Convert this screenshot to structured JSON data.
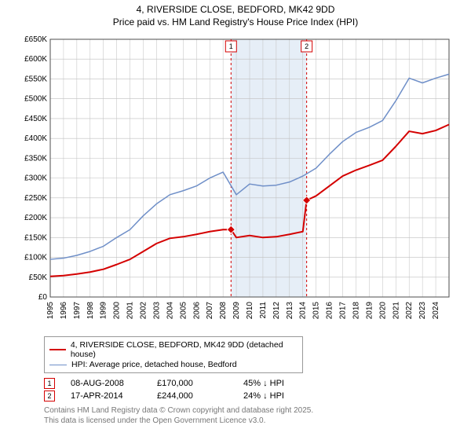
{
  "title": {
    "line1": "4, RIVERSIDE CLOSE, BEDFORD, MK42 9DD",
    "line2": "Price paid vs. HM Land Registry's House Price Index (HPI)"
  },
  "chart": {
    "type": "line",
    "plot_background": "#ffffff",
    "grid_color": "#bfbfbf",
    "axis_color": "#4d4d4d",
    "shaded_band": {
      "x_start": 2008.6,
      "x_end": 2014.29,
      "fill": "#e6eef7"
    },
    "xlim": [
      1995,
      2025
    ],
    "ylim": [
      0,
      650000
    ],
    "xticks": [
      1995,
      1996,
      1997,
      1998,
      1999,
      2000,
      2001,
      2002,
      2003,
      2004,
      2005,
      2006,
      2007,
      2008,
      2009,
      2010,
      2011,
      2012,
      2013,
      2014,
      2015,
      2016,
      2017,
      2018,
      2019,
      2020,
      2021,
      2022,
      2023,
      2024
    ],
    "yticks": [
      0,
      50000,
      100000,
      150000,
      200000,
      250000,
      300000,
      350000,
      400000,
      450000,
      500000,
      550000,
      600000,
      650000
    ],
    "ytick_labels": [
      "£0",
      "£50K",
      "£100K",
      "£150K",
      "£200K",
      "£250K",
      "£300K",
      "£350K",
      "£400K",
      "£450K",
      "£500K",
      "£550K",
      "£600K",
      "£650K"
    ],
    "series": [
      {
        "name": "4, RIVERSIDE CLOSE, BEDFORD, MK42 9DD (detached house)",
        "color": "#d40000",
        "line_width": 2,
        "data": [
          [
            1995,
            52000
          ],
          [
            1996,
            54000
          ],
          [
            1997,
            58000
          ],
          [
            1998,
            63000
          ],
          [
            1999,
            70000
          ],
          [
            2000,
            82000
          ],
          [
            2001,
            95000
          ],
          [
            2002,
            115000
          ],
          [
            2003,
            135000
          ],
          [
            2004,
            148000
          ],
          [
            2005,
            152000
          ],
          [
            2006,
            158000
          ],
          [
            2007,
            165000
          ],
          [
            2008,
            170000
          ],
          [
            2008.6,
            170000
          ],
          [
            2009,
            150000
          ],
          [
            2010,
            155000
          ],
          [
            2011,
            150000
          ],
          [
            2012,
            152000
          ],
          [
            2013,
            158000
          ],
          [
            2014,
            165000
          ],
          [
            2014.29,
            244000
          ],
          [
            2015,
            255000
          ],
          [
            2016,
            280000
          ],
          [
            2017,
            305000
          ],
          [
            2018,
            320000
          ],
          [
            2019,
            332000
          ],
          [
            2020,
            345000
          ],
          [
            2021,
            380000
          ],
          [
            2022,
            418000
          ],
          [
            2023,
            412000
          ],
          [
            2024,
            420000
          ],
          [
            2025,
            435000
          ]
        ],
        "sale_markers": [
          {
            "x": 2008.6,
            "y": 170000,
            "label": "1",
            "box_color": "#d40000"
          },
          {
            "x": 2014.29,
            "y": 244000,
            "label": "2",
            "box_color": "#d40000"
          }
        ]
      },
      {
        "name": "HPI: Average price, detached house, Bedford",
        "color": "#6f8fc8",
        "line_width": 1.5,
        "data": [
          [
            1995,
            95000
          ],
          [
            1996,
            98000
          ],
          [
            1997,
            105000
          ],
          [
            1998,
            115000
          ],
          [
            1999,
            128000
          ],
          [
            2000,
            150000
          ],
          [
            2001,
            170000
          ],
          [
            2002,
            205000
          ],
          [
            2003,
            235000
          ],
          [
            2004,
            258000
          ],
          [
            2005,
            268000
          ],
          [
            2006,
            280000
          ],
          [
            2007,
            300000
          ],
          [
            2008,
            315000
          ],
          [
            2009,
            258000
          ],
          [
            2010,
            285000
          ],
          [
            2011,
            280000
          ],
          [
            2012,
            282000
          ],
          [
            2013,
            290000
          ],
          [
            2014,
            305000
          ],
          [
            2015,
            325000
          ],
          [
            2016,
            360000
          ],
          [
            2017,
            392000
          ],
          [
            2018,
            415000
          ],
          [
            2019,
            428000
          ],
          [
            2020,
            445000
          ],
          [
            2021,
            495000
          ],
          [
            2022,
            552000
          ],
          [
            2023,
            540000
          ],
          [
            2024,
            552000
          ],
          [
            2025,
            562000
          ]
        ]
      }
    ],
    "vlines": [
      {
        "x": 2008.6,
        "color": "#d40000",
        "dash": "3,3",
        "top_label": "1"
      },
      {
        "x": 2014.29,
        "color": "#d40000",
        "dash": "3,3",
        "top_label": "2"
      }
    ]
  },
  "legend": {
    "border_color": "#999999",
    "items": [
      {
        "label": "4, RIVERSIDE CLOSE, BEDFORD, MK42 9DD (detached house)",
        "color": "#d40000",
        "width": 2
      },
      {
        "label": "HPI: Average price, detached house, Bedford",
        "color": "#6f8fc8",
        "width": 1.5
      }
    ]
  },
  "sales": [
    {
      "marker": "1",
      "marker_color": "#d40000",
      "date": "08-AUG-2008",
      "price": "£170,000",
      "delta": "45% ↓ HPI"
    },
    {
      "marker": "2",
      "marker_color": "#d40000",
      "date": "17-APR-2014",
      "price": "£244,000",
      "delta": "24% ↓ HPI"
    }
  ],
  "footer": {
    "line1": "Contains HM Land Registry data © Crown copyright and database right 2025.",
    "line2": "This data is licensed under the Open Government Licence v3.0."
  },
  "fonts": {
    "title_size": 12,
    "tick_size": 10,
    "legend_size": 10.5,
    "footer_size": 10
  }
}
